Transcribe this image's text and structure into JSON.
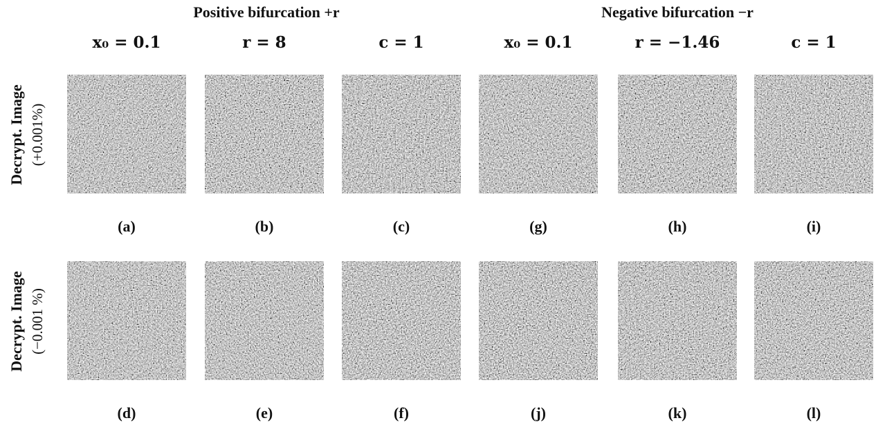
{
  "header": {
    "groups": [
      "Positive bifurcation +r",
      "Negative bifurcation −r"
    ],
    "columns": [
      "x₀ = 0.1",
      "r = 8",
      "c = 1",
      "x₀ = 0.1",
      "r = −1.46",
      "c = 1"
    ]
  },
  "rows": [
    {
      "label": "Decrypt. Image",
      "sublabel": "(+0.001%)",
      "captions": [
        "(a)",
        "(b)",
        "(c)",
        "(g)",
        "(h)",
        "(i)"
      ]
    },
    {
      "label": "Decrypt. Image",
      "sublabel": "(−0.001 %)",
      "captions": [
        "(d)",
        "(e)",
        "(f)",
        "(j)",
        "(k)",
        "(l)"
      ]
    }
  ]
}
